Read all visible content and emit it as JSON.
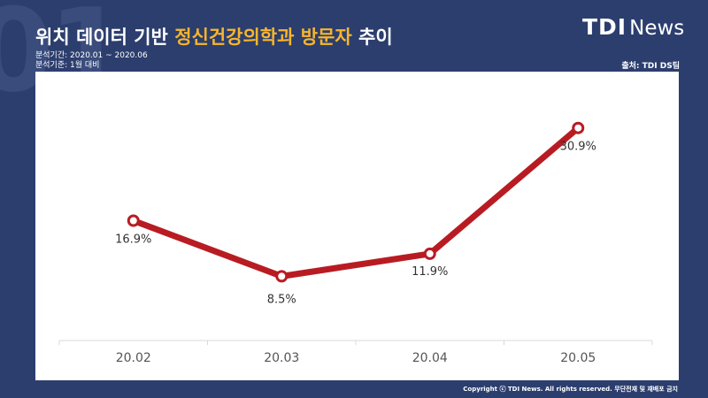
{
  "header": {
    "title_prefix": "위치 데이터 기반 ",
    "title_highlight": "정신건강의학과 방문자",
    "title_suffix": " 추이",
    "period": "분석기간: 2020.01 ~ 2020.06",
    "basis": "분석기준: 1월 대비",
    "source": "출처: TDI DS팀"
  },
  "brand": {
    "logo_mark": "TDI",
    "logo_name": "News",
    "background_number": "01"
  },
  "footer": {
    "copyright": "Copyright ⓒ TDI News. All rights reserved. 무단전재 및 재배포 금지"
  },
  "colors": {
    "background": "#2c3e6e",
    "accent": "#f7b52c",
    "line": "#b81c22"
  },
  "chart_data": {
    "type": "line",
    "categories": [
      "20.02",
      "20.03",
      "20.04",
      "20.05"
    ],
    "values": [
      16.9,
      8.5,
      11.9,
      30.9
    ],
    "labels": [
      "16.9%",
      "8.5%",
      "11.9%",
      "30.9%"
    ],
    "ylim": [
      0,
      35
    ],
    "grid": false,
    "legend": "none"
  }
}
